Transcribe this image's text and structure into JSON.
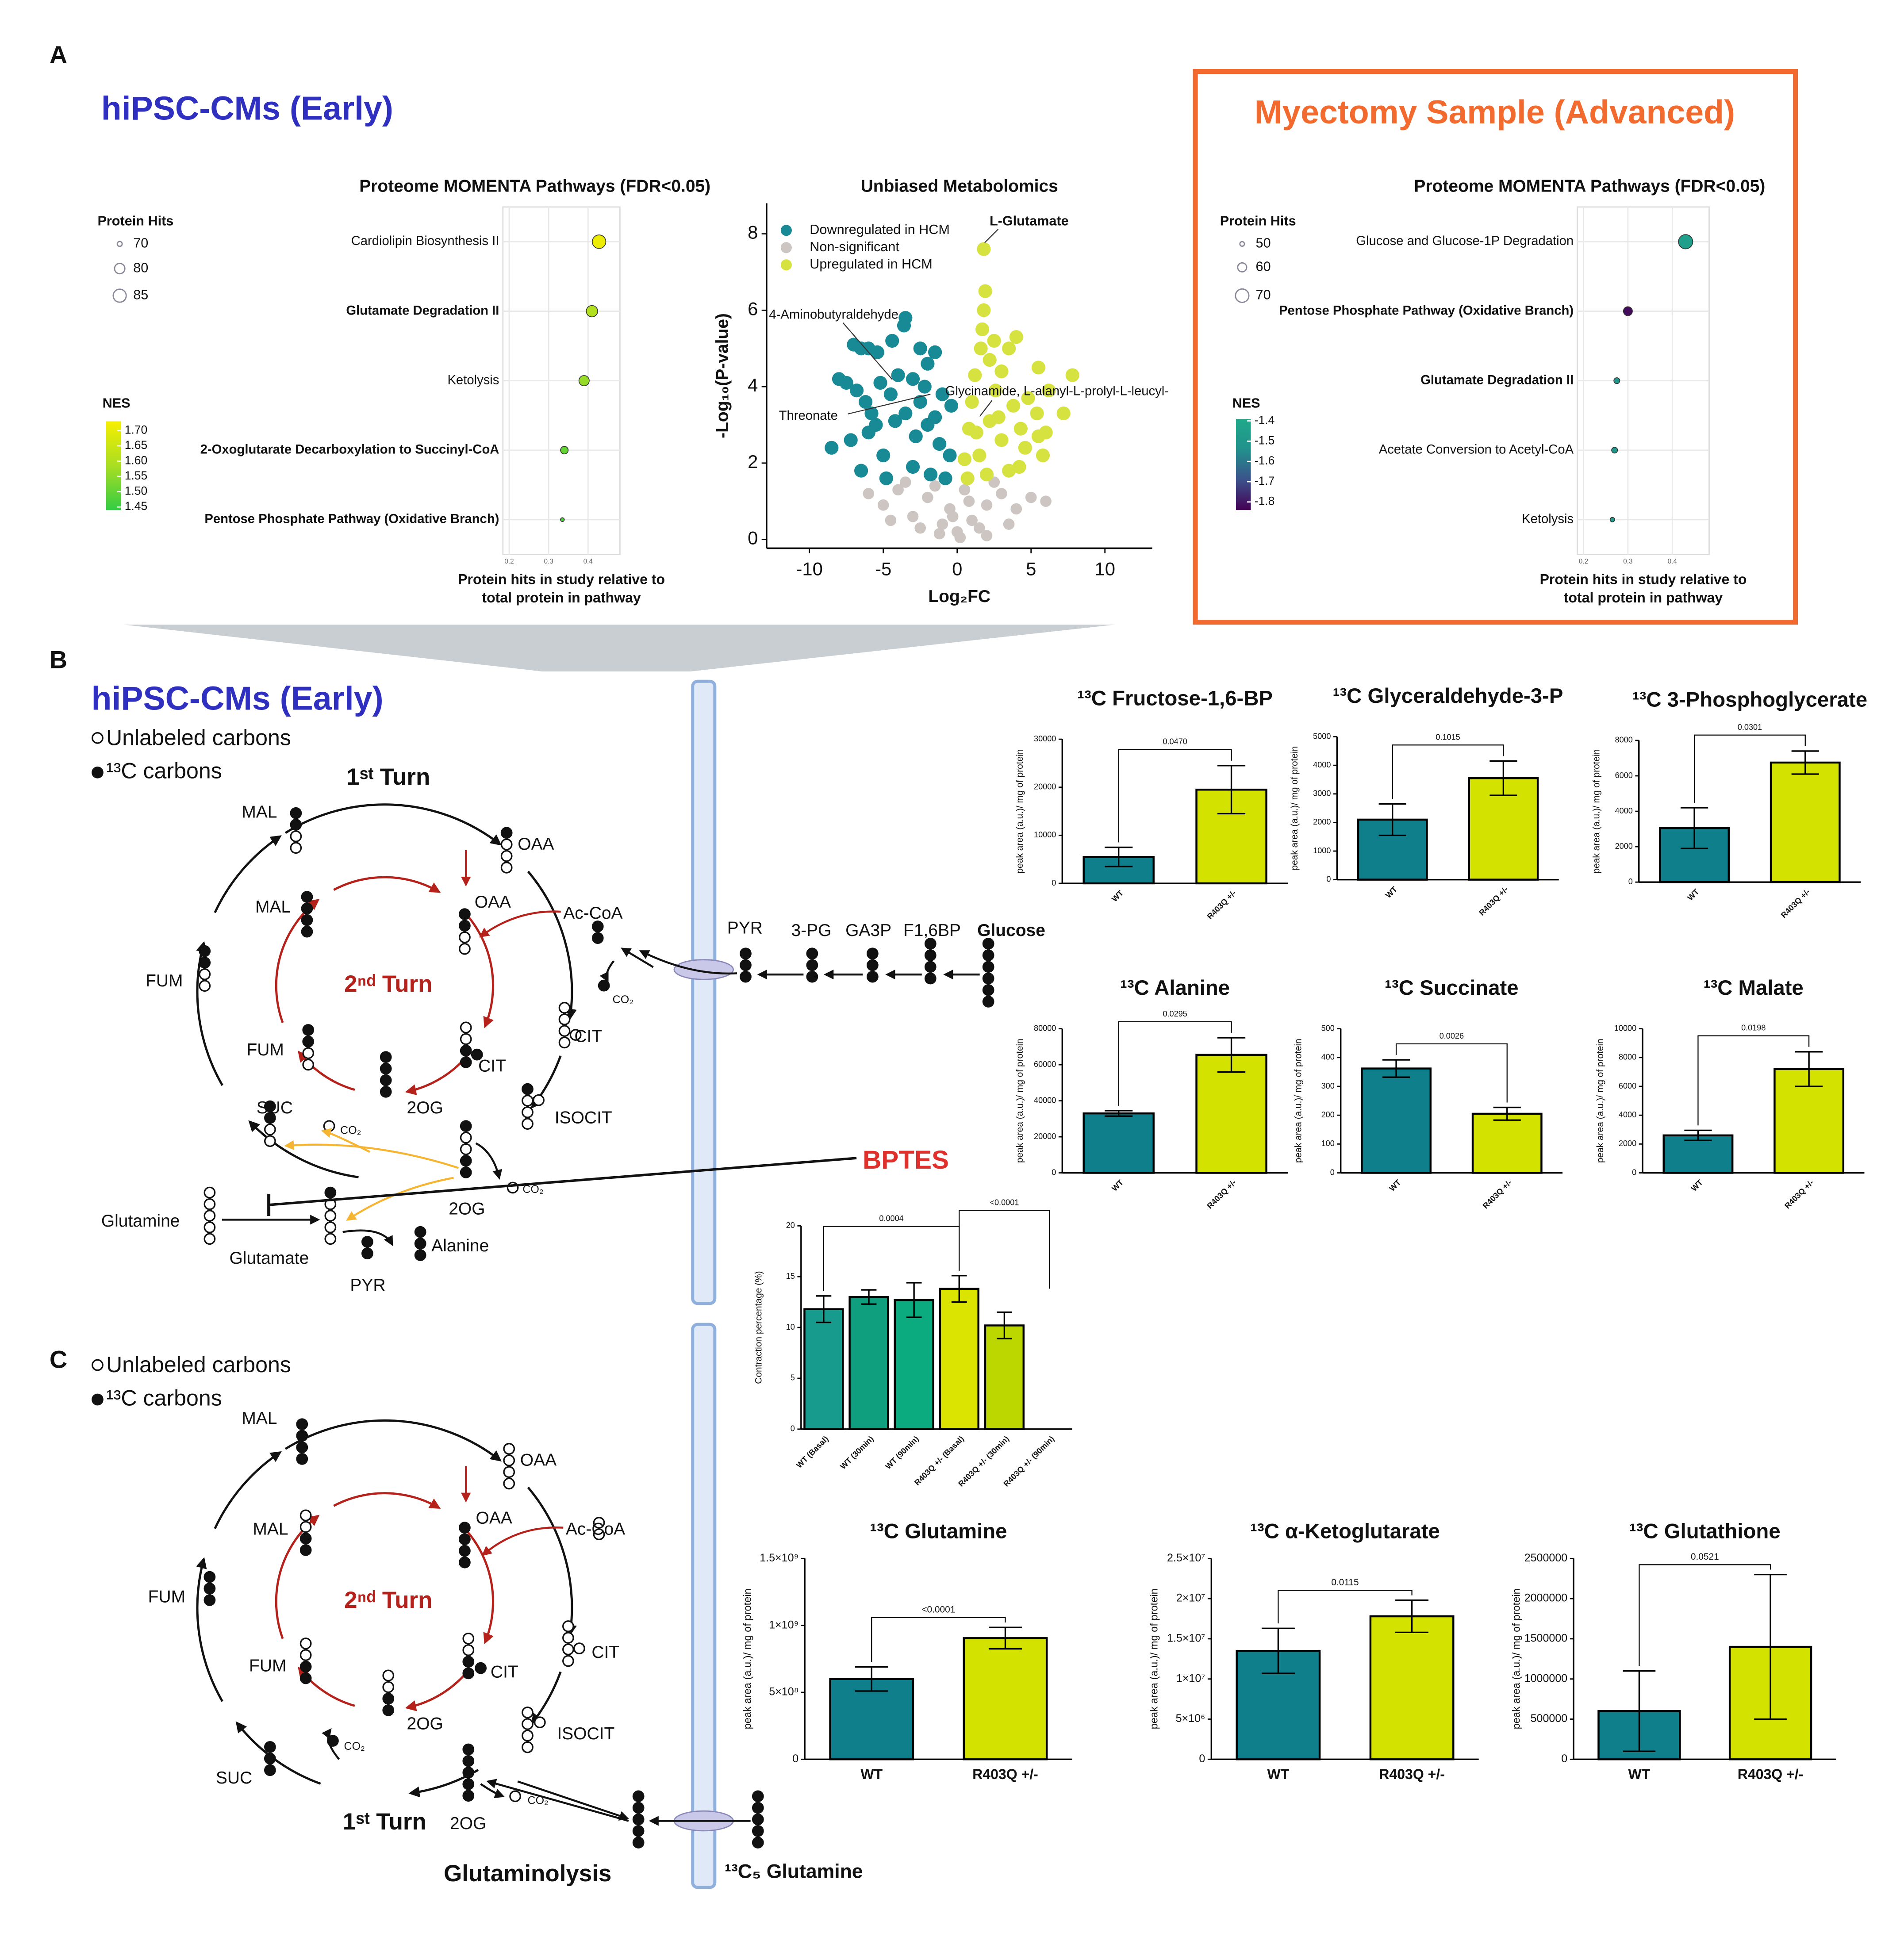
{
  "panels": [
    "A",
    "B",
    "C"
  ],
  "headers": {
    "early": "hiPSC-CMs (Early)",
    "advanced": "Myectomy Sample (Advanced)"
  },
  "chart_data": [
    {
      "type": "dot",
      "title": "Proteome MOMENTA Pathways (FDR<0.05)",
      "categories": [
        "Cardiolipin Biosynthesis II",
        "Glutamate Degradation II",
        "Ketolysis",
        "2-Oxoglutarate Decarboxylation to Succinyl-CoA",
        "Pentose Phosphate Pathway (Oxidative Branch)"
      ],
      "bold_categories": [
        false,
        true,
        false,
        true,
        true
      ],
      "values": [
        0.428,
        0.41,
        0.39,
        0.34,
        0.335
      ],
      "sizes": [
        86,
        82,
        80,
        75,
        68
      ],
      "nes": [
        1.71,
        1.6,
        1.56,
        1.5,
        1.47
      ],
      "xlim": [
        0.184,
        0.481
      ],
      "xticks": [
        0.2,
        0.3,
        0.4
      ],
      "grid": true,
      "xlabel": [
        "Protein hits in study relative to",
        "total protein in pathway"
      ],
      "size_legend": {
        "title": "Protein Hits",
        "values": [
          70,
          80,
          85
        ]
      },
      "color_legend": {
        "title": "NES",
        "clim": [
          1.44,
          1.73
        ],
        "colormap": [
          "#33cc44",
          "#a9de22",
          "#f7ee00"
        ],
        "ticks": [
          {
            "value": 1.7,
            "label": "1.70"
          },
          1.65,
          {
            "value": 1.6,
            "label": "1.60"
          },
          1.55,
          {
            "value": 1.5,
            "label": "1.50"
          },
          1.45
        ]
      }
    },
    {
      "type": "scatter",
      "title": "Unbiased Metabolomics",
      "xlabel": "Log₂FC",
      "ylabel": "-Log₁₀(P-value)",
      "xlim": [
        -12.9,
        13.2
      ],
      "ylim": [
        -0.23,
        8.8
      ],
      "xticks": [
        -10,
        -5,
        0,
        5,
        10
      ],
      "yticks": [
        0,
        2,
        4,
        6,
        8
      ],
      "legend": "upper left",
      "series": [
        {
          "name": "Downregulated in HCM",
          "color": "#188a96",
          "x": [
            -7,
            -6.5,
            -6,
            -5.4,
            -4.4,
            -3.6,
            -3.5,
            -2.5,
            -2,
            -1.5,
            -8,
            -7.5,
            -6.8,
            -6.2,
            -5.2,
            -4.5,
            -4,
            -3,
            -2.2,
            -1,
            -8.5,
            -7.2,
            -6,
            -5.5,
            -5,
            -4.2,
            -3.5,
            -2.8,
            -2,
            -1.2,
            -0.5,
            -6.5,
            -4.8,
            -3,
            -1.8,
            -0.8,
            -5.8,
            -2.5,
            -1.5,
            -0.4
          ],
          "y": [
            5.1,
            5,
            5,
            4.9,
            5.2,
            5.6,
            5.8,
            5,
            4.6,
            4.9,
            4.2,
            4.1,
            3.9,
            3.6,
            4.1,
            3.8,
            4.3,
            4.2,
            4,
            3.8,
            2.4,
            2.6,
            2.8,
            3,
            2.2,
            3.1,
            3.3,
            2.7,
            3,
            2.5,
            2.2,
            1.8,
            1.6,
            1.9,
            1.7,
            1.6,
            3.3,
            3.6,
            3.2,
            3.5
          ]
        },
        {
          "name": "Non-significant",
          "color": "#cdc5c1",
          "x": [
            -6,
            -5,
            -4,
            -3,
            -2,
            -1,
            0,
            1,
            2,
            3,
            4,
            5,
            6,
            -3.5,
            -1.5,
            0.5,
            2.5,
            -0.5,
            1.5,
            -2.5,
            3.5,
            -4.5,
            0.2,
            -0.3,
            0.8,
            -1.2,
            2
          ],
          "y": [
            1.2,
            0.9,
            1.3,
            0.6,
            1.1,
            0.4,
            0.2,
            0.5,
            0.9,
            1.2,
            0.8,
            1.1,
            1,
            1.5,
            1.4,
            1.3,
            1.5,
            0.8,
            0.3,
            0.3,
            0.4,
            0.5,
            0.05,
            0.6,
            1,
            0.15,
            0.1
          ]
        },
        {
          "name": "Upregulated in HCM",
          "color": "#d6e23f",
          "x": [
            1.8,
            1.9,
            1.8,
            1.7,
            4,
            2.5,
            3.5,
            1.6,
            2.2,
            5.5,
            7.8,
            3,
            1.2,
            6.2,
            4.8,
            2.6,
            7.2,
            5.4,
            3.8,
            1,
            6,
            5.5,
            4.3,
            2.2,
            0.8,
            5.8,
            4.6,
            3,
            1.5,
            0.5,
            3.5,
            2,
            0.7,
            4.2,
            2.8,
            1.3
          ],
          "y": [
            7.6,
            6.5,
            6,
            5.5,
            5.3,
            5.2,
            5,
            5,
            4.7,
            4.5,
            4.3,
            4.4,
            4.3,
            3.9,
            3.7,
            3.9,
            3.3,
            3.3,
            3.5,
            3.6,
            2.8,
            2.7,
            2.9,
            3.1,
            2.9,
            2.2,
            2.4,
            2.6,
            2.2,
            2.1,
            1.8,
            1.7,
            1.6,
            1.9,
            3.2,
            2.8
          ]
        }
      ],
      "annotations": [
        "L-Glutamate",
        "4-Aminobutyraldehyde",
        "Threonate",
        "Glycinamide, L-alanyl-L-prolyl-L-leucyl-"
      ]
    },
    {
      "type": "dot",
      "title": "Proteome MOMENTA Pathways (FDR<0.05)",
      "categories": [
        "Glucose and Glucose-1P Degradation",
        "Pentose Phosphate Pathway (Oxidative Branch)",
        "Glutamate Degradation II",
        "Acetate Conversion to Acetyl-CoA",
        "Ketolysis"
      ],
      "bold_categories": [
        false,
        true,
        true,
        false,
        false
      ],
      "values": [
        0.43,
        0.3,
        0.275,
        0.27,
        0.265
      ],
      "sizes": [
        72,
        60,
        53,
        53,
        50
      ],
      "nes": [
        -1.45,
        -1.82,
        -1.5,
        -1.5,
        -1.47
      ],
      "xlim": [
        0.186,
        0.483
      ],
      "xticks": [
        0.2,
        0.3,
        0.4
      ],
      "grid": true,
      "xlabel": [
        "Protein hits in study relative to",
        "total protein in pathway"
      ],
      "size_legend": {
        "title": "Protein Hits",
        "values": [
          50,
          60,
          70
        ]
      },
      "color_legend": {
        "title": "NES",
        "clim": [
          -1.84,
          -1.39
        ],
        "colormap": [
          "#440154",
          "#3b528b",
          "#21918c",
          "#20a98a"
        ],
        "ticks": [
          -1.4,
          -1.5,
          -1.6,
          -1.7,
          -1.8
        ]
      }
    },
    {
      "type": "bar",
      "title": "¹³C Fructose-1,6-BP",
      "ylabel": "peak area (a.u.)/ mg of protein",
      "categories": [
        "WT",
        "R403Q +/-"
      ],
      "values": [
        5500,
        19500
      ],
      "errors": [
        2000,
        5000
      ],
      "colors": [
        "#107f8c",
        "#d4e200"
      ],
      "ylim": [
        0,
        30000
      ],
      "yticks": [
        0,
        10000,
        20000,
        30000
      ],
      "comparisons": [
        {
          "from": "WT",
          "to": "R403Q +/-",
          "label": "0.0470"
        }
      ]
    },
    {
      "type": "bar",
      "title": "¹³C Glyceraldehyde-3-P",
      "ylabel": "peak area (a.u.)/ mg of protein",
      "categories": [
        "WT",
        "R403Q +/-"
      ],
      "values": [
        2100,
        3550
      ],
      "errors": [
        550,
        600
      ],
      "colors": [
        "#107f8c",
        "#d4e200"
      ],
      "ylim": [
        0,
        5000
      ],
      "yticks": [
        0,
        1000,
        2000,
        3000,
        4000,
        5000
      ],
      "comparisons": [
        {
          "from": "WT",
          "to": "R403Q +/-",
          "label": "0.1015"
        }
      ]
    },
    {
      "type": "bar",
      "title": "¹³C 3-Phosphoglycerate",
      "ylabel": "peak area (a.u.)/ mg of protein",
      "categories": [
        "WT",
        "R403Q +/-"
      ],
      "values": [
        3050,
        6750
      ],
      "errors": [
        1150,
        650
      ],
      "colors": [
        "#107f8c",
        "#d4e200"
      ],
      "ylim": [
        0,
        8000
      ],
      "yticks": [
        0,
        2000,
        4000,
        6000,
        8000
      ],
      "comparisons": [
        {
          "from": "WT",
          "to": "R403Q +/-",
          "label": "0.0301"
        }
      ]
    },
    {
      "type": "bar",
      "title": "¹³C Alanine",
      "ylabel": "peak area (a.u.)/ mg of protein",
      "categories": [
        "WT",
        "R403Q +/-"
      ],
      "values": [
        33000,
        65500
      ],
      "errors": [
        1500,
        9500
      ],
      "colors": [
        "#107f8c",
        "#d4e200"
      ],
      "ylim": [
        0,
        80000
      ],
      "yticks": [
        0,
        20000,
        40000,
        60000,
        80000
      ],
      "comparisons": [
        {
          "from": "WT",
          "to": "R403Q +/-",
          "label": "0.0295"
        }
      ]
    },
    {
      "type": "bar",
      "title": "¹³C Succinate",
      "ylabel": "peak area (a.u.)/ mg of protein",
      "categories": [
        "WT",
        "R403Q +/-"
      ],
      "values": [
        362,
        205
      ],
      "errors": [
        30,
        22
      ],
      "colors": [
        "#107f8c",
        "#d4e200"
      ],
      "ylim": [
        0,
        500
      ],
      "yticks": [
        0,
        100,
        200,
        300,
        400,
        500
      ],
      "comparisons": [
        {
          "from": "WT",
          "to": "R403Q +/-",
          "label": "0.0026"
        }
      ]
    },
    {
      "type": "bar",
      "title": "¹³C Malate",
      "ylabel": "peak area (a.u.)/ mg of protein",
      "categories": [
        "WT",
        "R403Q +/-"
      ],
      "values": [
        2600,
        7200
      ],
      "errors": [
        350,
        1200
      ],
      "colors": [
        "#107f8c",
        "#d4e200"
      ],
      "ylim": [
        0,
        10000
      ],
      "yticks": [
        0,
        2000,
        4000,
        6000,
        8000,
        10000
      ],
      "comparisons": [
        {
          "from": "WT",
          "to": "R403Q +/-",
          "label": "0.0198"
        }
      ]
    },
    {
      "type": "bar",
      "ylabel": "Contraction percentage (%)",
      "categories": [
        "WT (Basal)",
        "WT (30min)",
        "WT (90min)",
        "R403Q +/- (Basal)",
        "R403Q +/- (30min)",
        "R403Q +/- (90min)"
      ],
      "values": [
        11.8,
        13.0,
        12.7,
        13.8,
        10.2,
        null
      ],
      "errors": [
        1.3,
        0.7,
        1.7,
        1.3,
        1.3,
        null
      ],
      "colors": [
        "#179b8c",
        "#0f9e7e",
        "#0bab7f",
        "#dbe300",
        "#bcd600",
        "#bcd600"
      ],
      "ylim": [
        0,
        20
      ],
      "yticks": [
        0,
        5,
        10,
        15,
        20
      ],
      "comparisons": [
        {
          "from": "WT (Basal)",
          "to": "R403Q +/- (Basal)",
          "label": "0.0004"
        },
        {
          "from": "R403Q +/- (Basal)",
          "to": "R403Q +/- (90min)",
          "label": "<0.0001"
        }
      ]
    },
    {
      "type": "bar",
      "title": "¹³C Glutamine",
      "ylabel": "peak area (a.u.)/ mg of protein",
      "categories": [
        "WT",
        "R403Q +/-"
      ],
      "values": [
        600000000,
        905000000
      ],
      "errors": [
        90000000,
        80000000
      ],
      "colors": [
        "#107f8c",
        "#d4e200"
      ],
      "ylim": [
        0,
        1500000000
      ],
      "yticks": [
        0,
        {
          "value": 500000000,
          "label": "5×10⁸"
        },
        {
          "value": 1000000000,
          "label": "1×10⁹"
        },
        {
          "value": 1500000000,
          "label": "1.5×10⁹"
        }
      ],
      "comparisons": [
        {
          "from": "WT",
          "to": "R403Q +/-",
          "label": "<0.0001"
        }
      ]
    },
    {
      "type": "bar",
      "title": "¹³C α-Ketoglutarate",
      "ylabel": "peak area (a.u.)/ mg of protein",
      "categories": [
        "WT",
        "R403Q +/-"
      ],
      "values": [
        13500000,
        17800000
      ],
      "errors": [
        2800000,
        2000000
      ],
      "colors": [
        "#107f8c",
        "#d4e200"
      ],
      "ylim": [
        0,
        25000000
      ],
      "yticks": [
        0,
        {
          "value": 5000000,
          "label": "5×10⁶"
        },
        {
          "value": 10000000,
          "label": "1×10⁷"
        },
        {
          "value": 15000000,
          "label": "1.5×10⁷"
        },
        {
          "value": 20000000,
          "label": "2×10⁷"
        },
        {
          "value": 25000000,
          "label": "2.5×10⁷"
        }
      ],
      "comparisons": [
        {
          "from": "WT",
          "to": "R403Q +/-",
          "label": "0.0115"
        }
      ]
    },
    {
      "type": "bar",
      "title": "¹³C Glutathione",
      "ylabel": "peak area (a.u.)/ mg of protein",
      "categories": [
        "WT",
        "R403Q +/-"
      ],
      "values": [
        600000,
        1400000
      ],
      "errors": [
        500000,
        900000
      ],
      "colors": [
        "#107f8c",
        "#d4e200"
      ],
      "ylim": [
        0,
        2500000
      ],
      "yticks": [
        0,
        500000,
        1000000,
        1500000,
        2000000,
        2500000
      ],
      "comparisons": [
        {
          "from": "WT",
          "to": "R403Q +/-",
          "label": "0.0521"
        }
      ]
    }
  ],
  "diagram_b": {
    "title": "hiPSC-CMs (Early)",
    "legend": [
      "Unlabeled carbons",
      "¹³C carbons"
    ],
    "labels": [
      "1ˢᵗ Turn",
      "MAL",
      "OAA",
      "MAL",
      "OAA",
      "Ac-CoA",
      "FUM",
      "2ⁿᵈ Turn",
      "FUM",
      "CIT",
      "CIT",
      "2OG",
      "SUC",
      "CO₂",
      "ISOCIT",
      "2OG",
      "CO₂",
      "CO₂",
      "Glutamine",
      "Glutamate",
      "Alanine",
      "PYR",
      "PYR",
      "3-PG",
      "GA3P",
      "F1,6BP",
      "Glucose",
      "BPTES"
    ]
  },
  "diagram_c": {
    "legend": [
      "Unlabeled carbons",
      "¹³C carbons"
    ],
    "labels": [
      "MAL",
      "OAA",
      "MAL",
      "OAA",
      "Ac-CoA",
      "FUM",
      "2ⁿᵈ Turn",
      "FUM",
      "CIT",
      "CIT",
      "2OG",
      "ISOCIT",
      "CO₂",
      "SUC",
      "CO₂",
      "1ˢᵗ Turn",
      "2OG",
      "Glutaminolysis",
      "¹³C₅ Glutamine"
    ]
  }
}
